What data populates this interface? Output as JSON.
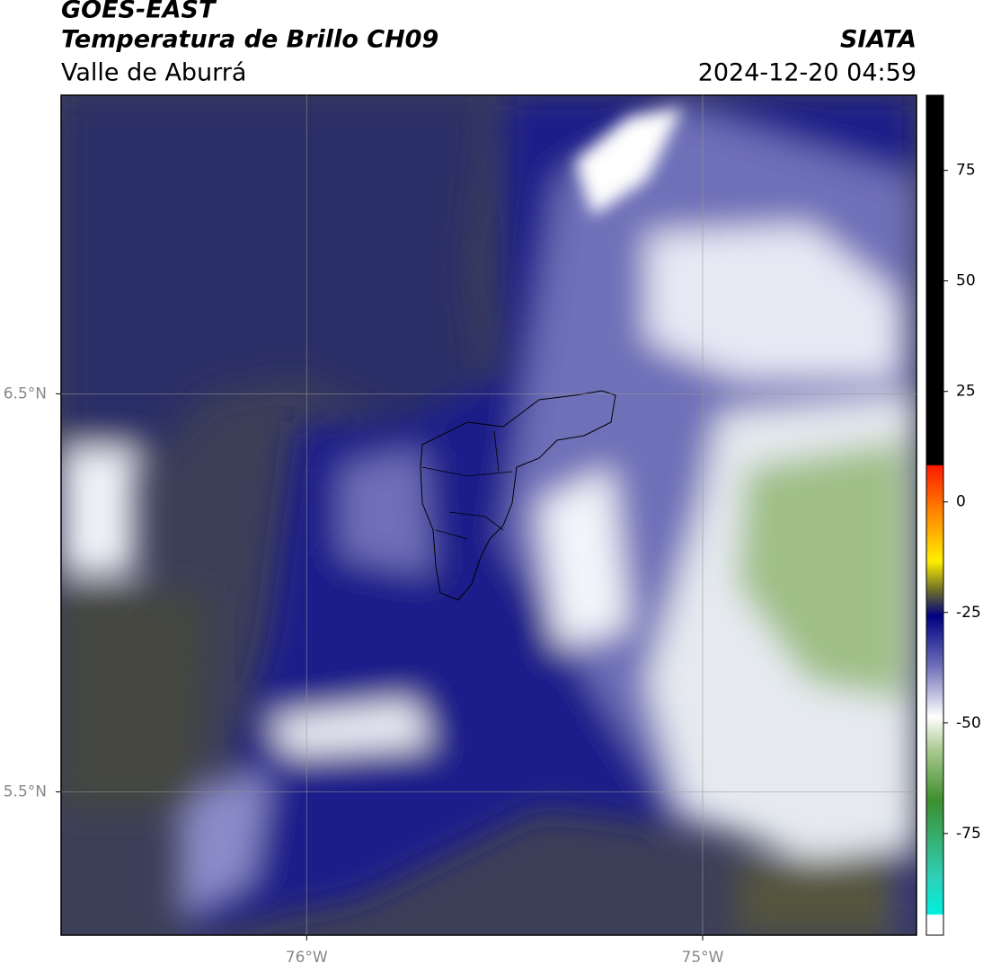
{
  "header": {
    "title": "GOES-EAST",
    "subtitle": "Temperatura de Brillo CH09",
    "region": "Valle de Aburrá",
    "source": "SIATA",
    "datetime": "2024-12-20 04:59"
  },
  "map": {
    "xlim": [
      -76.62,
      -74.46
    ],
    "ylim": [
      5.14,
      7.25
    ],
    "xticks": [
      {
        "value": -76,
        "label": "76°W"
      },
      {
        "value": -75,
        "label": "75°W"
      }
    ],
    "yticks": [
      {
        "value": 6.5,
        "label": "6.5°N"
      },
      {
        "value": 5.5,
        "label": "5.5°N"
      }
    ],
    "grid": true
  },
  "colorbar": {
    "lim": [
      -98,
      92
    ],
    "ticks": [
      75,
      50,
      25,
      0,
      -25,
      -50,
      -75
    ]
  }
}
